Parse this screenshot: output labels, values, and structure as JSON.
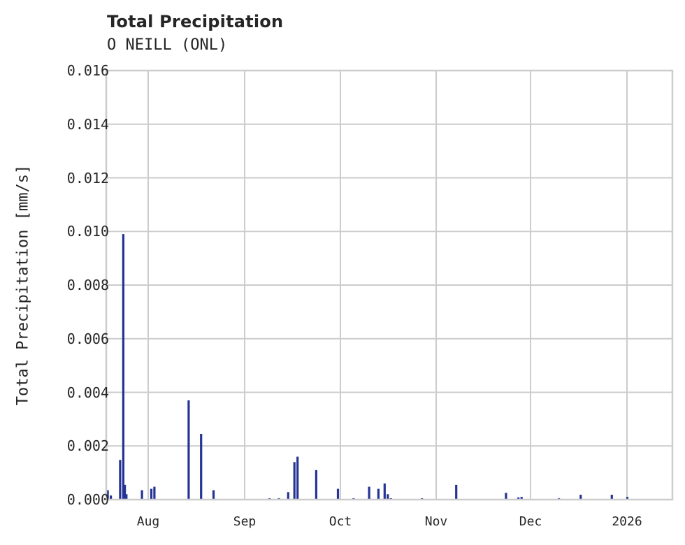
{
  "header": {
    "title": "Total Precipitation",
    "subtitle": "O NEILL (ONL)"
  },
  "axes": {
    "ylabel": "Total Precipitation [mm/s]",
    "yticks": [
      "0.000",
      "0.002",
      "0.004",
      "0.006",
      "0.008",
      "0.010",
      "0.012",
      "0.014",
      "0.016"
    ],
    "xticks": [
      "Aug",
      "Sep",
      "Oct",
      "Nov",
      "Dec",
      "2026"
    ]
  },
  "colors": {
    "bar": "#253494",
    "grid": "#cccccc",
    "text": "#262626"
  },
  "chart_data": {
    "type": "bar",
    "title": "Total Precipitation",
    "subtitle": "O NEILL (ONL)",
    "xlabel": "",
    "ylabel": "Total Precipitation [mm/s]",
    "ylim": [
      0,
      0.016
    ],
    "xlim": [
      "2025-07-18",
      "2026-01-15"
    ],
    "grid": true,
    "legend": null,
    "x_tick_labels": [
      "Aug",
      "Sep",
      "Oct",
      "Nov",
      "Dec",
      "2026"
    ],
    "y_tick_labels": [
      "0.000",
      "0.002",
      "0.004",
      "0.006",
      "0.008",
      "0.010",
      "0.012",
      "0.014",
      "0.016"
    ],
    "series": [
      {
        "name": "Total Precipitation",
        "points": [
          {
            "date": "2025-07-19",
            "value": 0.00035
          },
          {
            "date": "2025-07-20",
            "value": 0.00015
          },
          {
            "date": "2025-07-23",
            "value": 0.00148
          },
          {
            "date": "2025-07-24",
            "value": 0.0099
          },
          {
            "date": "2025-07-24T12",
            "value": 0.00055
          },
          {
            "date": "2025-07-25",
            "value": 0.0002
          },
          {
            "date": "2025-07-30",
            "value": 0.00035
          },
          {
            "date": "2025-08-02",
            "value": 0.0004
          },
          {
            "date": "2025-08-03",
            "value": 0.00048
          },
          {
            "date": "2025-08-14",
            "value": 0.0037
          },
          {
            "date": "2025-08-18",
            "value": 0.00245
          },
          {
            "date": "2025-08-22",
            "value": 0.00035
          },
          {
            "date": "2025-09-09",
            "value": 5e-05
          },
          {
            "date": "2025-09-12",
            "value": 5e-05
          },
          {
            "date": "2025-09-15",
            "value": 0.00028
          },
          {
            "date": "2025-09-17",
            "value": 0.0014
          },
          {
            "date": "2025-09-18",
            "value": 0.0016
          },
          {
            "date": "2025-09-24",
            "value": 0.0011
          },
          {
            "date": "2025-10-01",
            "value": 0.0004
          },
          {
            "date": "2025-10-06",
            "value": 5e-05
          },
          {
            "date": "2025-10-11",
            "value": 0.00048
          },
          {
            "date": "2025-10-14",
            "value": 0.0004
          },
          {
            "date": "2025-10-16",
            "value": 0.0006
          },
          {
            "date": "2025-10-17",
            "value": 0.0002
          },
          {
            "date": "2025-10-18",
            "value": 5e-05
          },
          {
            "date": "2025-10-28",
            "value": 5e-05
          },
          {
            "date": "2025-11-08",
            "value": 0.00055
          },
          {
            "date": "2025-11-24",
            "value": 0.00025
          },
          {
            "date": "2025-11-28",
            "value": 8e-05
          },
          {
            "date": "2025-11-29",
            "value": 0.0001
          },
          {
            "date": "2025-12-11",
            "value": 5e-05
          },
          {
            "date": "2025-12-18",
            "value": 0.00018
          },
          {
            "date": "2025-12-28",
            "value": 0.00018
          },
          {
            "date": "2026-01-02",
            "value": 0.0001
          }
        ]
      }
    ]
  }
}
